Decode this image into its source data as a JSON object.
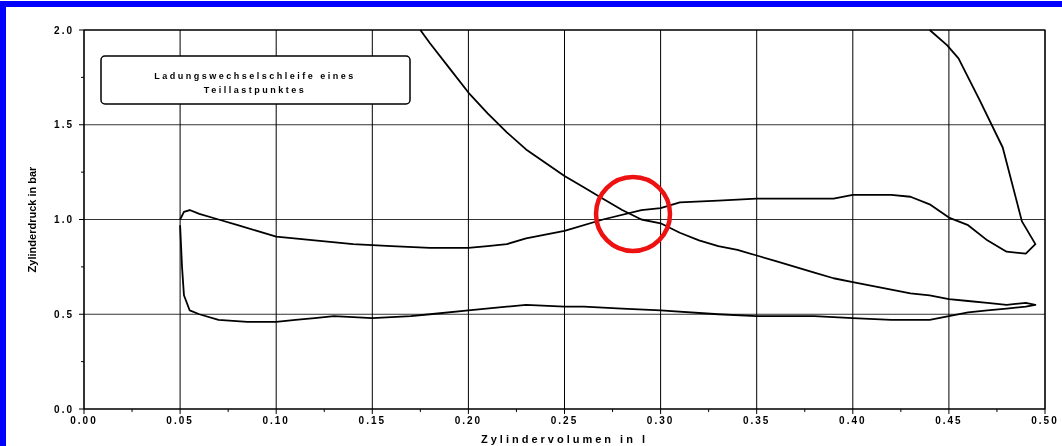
{
  "chart_data": {
    "type": "line",
    "title": "Ladungswechselschleife eines Teillastpunktes",
    "xlabel": "Zylindervolumen in l",
    "ylabel": "Zylinderdruck in bar",
    "xlim": [
      0,
      0.5
    ],
    "ylim": [
      0,
      2
    ],
    "xticks": [
      {
        "value": 0,
        "label": "0.00"
      },
      {
        "value": 0.025,
        "label": null
      },
      {
        "value": 0.05,
        "label": "0.05"
      },
      {
        "value": 0.075,
        "label": null
      },
      {
        "value": 0.1,
        "label": "0.10"
      },
      {
        "value": 0.125,
        "label": null
      },
      {
        "value": 0.15,
        "label": "0.15"
      },
      {
        "value": 0.175,
        "label": null
      },
      {
        "value": 0.2,
        "label": "0.20"
      },
      {
        "value": 0.225,
        "label": null
      },
      {
        "value": 0.25,
        "label": "0.25"
      },
      {
        "value": 0.275,
        "label": null
      },
      {
        "value": 0.3,
        "label": "0.30"
      },
      {
        "value": 0.325,
        "label": null
      },
      {
        "value": 0.35,
        "label": "0.35"
      },
      {
        "value": 0.375,
        "label": null
      },
      {
        "value": 0.4,
        "label": "0.40"
      },
      {
        "value": 0.425,
        "label": null
      },
      {
        "value": 0.45,
        "label": "0.45"
      },
      {
        "value": 0.475,
        "label": null
      },
      {
        "value": 0.5,
        "label": "0.50"
      }
    ],
    "yticks": [
      {
        "value": 0,
        "label": "0.0"
      },
      {
        "value": 0.25,
        "label": null
      },
      {
        "value": 0.5,
        "label": "0.5"
      },
      {
        "value": 0.75,
        "label": null
      },
      {
        "value": 1,
        "label": "1.0"
      },
      {
        "value": 1.25,
        "label": null
      },
      {
        "value": 1.5,
        "label": "1.5"
      },
      {
        "value": 1.75,
        "label": null
      },
      {
        "value": 2,
        "label": "2.0"
      }
    ],
    "grid": true,
    "marker": "none",
    "line_style": "solid",
    "series": [
      {
        "color": "#000000",
        "x": [
          0.175,
          0.18,
          0.19,
          0.2,
          0.21,
          0.22,
          0.23,
          0.24,
          0.25,
          0.26,
          0.27,
          0.28,
          0.29,
          0.3,
          0.31,
          0.32,
          0.33,
          0.34,
          0.35,
          0.36,
          0.37,
          0.38,
          0.39,
          0.4,
          0.41,
          0.42,
          0.43,
          0.44,
          0.45,
          0.46,
          0.47,
          0.48,
          0.49,
          0.495,
          0.49,
          0.48,
          0.47,
          0.46,
          0.45,
          0.44,
          0.42,
          0.4,
          0.38,
          0.35,
          0.33,
          0.3,
          0.28,
          0.26,
          0.25,
          0.23,
          0.22,
          0.2,
          0.18,
          0.17,
          0.15,
          0.13,
          0.12,
          0.11,
          0.1,
          0.085,
          0.07,
          0.06,
          0.055,
          0.052,
          0.051,
          0.05
        ],
        "values": [
          2.0,
          1.93,
          1.8,
          1.67,
          1.56,
          1.46,
          1.37,
          1.3,
          1.23,
          1.17,
          1.11,
          1.05,
          1.0,
          0.98,
          0.93,
          0.89,
          0.86,
          0.84,
          0.81,
          0.78,
          0.75,
          0.72,
          0.69,
          0.67,
          0.65,
          0.63,
          0.61,
          0.6,
          0.58,
          0.57,
          0.56,
          0.55,
          0.56,
          0.55,
          0.54,
          0.53,
          0.52,
          0.51,
          0.49,
          0.47,
          0.47,
          0.48,
          0.49,
          0.49,
          0.5,
          0.52,
          0.53,
          0.54,
          0.54,
          0.55,
          0.54,
          0.52,
          0.5,
          0.49,
          0.48,
          0.49,
          0.48,
          0.47,
          0.46,
          0.46,
          0.47,
          0.5,
          0.52,
          0.6,
          0.75,
          0.97
        ]
      },
      {
        "color": "#000000",
        "x": [
          0.05,
          0.052,
          0.055,
          0.06,
          0.07,
          0.08,
          0.09,
          0.1,
          0.12,
          0.14,
          0.16,
          0.18,
          0.2,
          0.21,
          0.22,
          0.23,
          0.25,
          0.27,
          0.29,
          0.3,
          0.31,
          0.33,
          0.35,
          0.37,
          0.39,
          0.4,
          0.42,
          0.43,
          0.44,
          0.45,
          0.46,
          0.47,
          0.48,
          0.49,
          0.495,
          0.488,
          0.478,
          0.466,
          0.455,
          0.449,
          0.44
        ],
        "values": [
          1.0,
          1.04,
          1.05,
          1.03,
          1.0,
          0.97,
          0.94,
          0.91,
          0.89,
          0.87,
          0.86,
          0.85,
          0.85,
          0.86,
          0.87,
          0.9,
          0.94,
          1.0,
          1.05,
          1.06,
          1.09,
          1.1,
          1.11,
          1.11,
          1.11,
          1.13,
          1.13,
          1.12,
          1.08,
          1.01,
          0.97,
          0.89,
          0.83,
          0.82,
          0.87,
          0.99,
          1.38,
          1.63,
          1.85,
          1.92,
          2.0
        ]
      }
    ]
  }
}
